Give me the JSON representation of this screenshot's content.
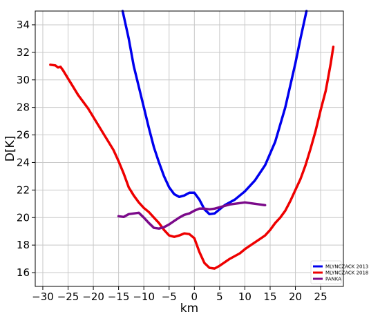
{
  "chart_data": {
    "type": "line",
    "title": "",
    "xlabel": "km",
    "ylabel": "D[K]",
    "xlim": [
      -31.5,
      29.5
    ],
    "ylim": [
      15,
      35
    ],
    "xticks": [
      -30,
      -25,
      -20,
      -15,
      -10,
      -5,
      0,
      5,
      10,
      15,
      20,
      25
    ],
    "xtick_labels": [
      "−30",
      "−25",
      "−20",
      "−15",
      "−10",
      "−5",
      "0",
      "5",
      "10",
      "15",
      "20",
      "25"
    ],
    "yticks": [
      16,
      18,
      20,
      22,
      24,
      26,
      28,
      30,
      32,
      34
    ],
    "ytick_labels": [
      "16",
      "18",
      "20",
      "22",
      "24",
      "26",
      "28",
      "30",
      "32",
      "34"
    ],
    "grid": true,
    "legend_position": "bottom-right",
    "series": [
      {
        "name": "MLYNCZACK 2013",
        "color": "#0000ee",
        "x": [
          -14.2,
          -13,
          -12,
          -11,
          -10,
          -9,
          -8,
          -7,
          -6,
          -5,
          -4,
          -3,
          -2,
          -1,
          0,
          1,
          2,
          3,
          4,
          5,
          6,
          8,
          10,
          12,
          14,
          16,
          18,
          20,
          21,
          22.2
        ],
        "y": [
          35,
          33,
          31,
          29.5,
          28,
          26.5,
          25.1,
          24,
          23,
          22.2,
          21.7,
          21.5,
          21.6,
          21.8,
          21.8,
          21.3,
          20.6,
          20.25,
          20.3,
          20.6,
          20.9,
          21.3,
          21.9,
          22.7,
          23.8,
          25.5,
          28,
          31.2,
          33,
          35
        ]
      },
      {
        "name": "MLYNCZACK 2018",
        "color": "#ee0000",
        "x": [
          -28.5,
          -27.5,
          -27,
          -26.5,
          -26,
          -25,
          -24,
          -23,
          -22,
          -21,
          -20,
          -19,
          -18,
          -17,
          -16,
          -15,
          -14,
          -13,
          -12,
          -11,
          -10,
          -9,
          -8,
          -7,
          -6,
          -5,
          -4,
          -3,
          -2,
          -1,
          0,
          1,
          2,
          3,
          4,
          5,
          6,
          7,
          8,
          9,
          10,
          11,
          12,
          13,
          14,
          15,
          16,
          17,
          18,
          19,
          20,
          21,
          22,
          23,
          24,
          25,
          26,
          26.5,
          27,
          27.5
        ],
        "y": [
          31.1,
          31.05,
          30.9,
          30.95,
          30.7,
          30.1,
          29.5,
          28.9,
          28.4,
          27.9,
          27.3,
          26.7,
          26.1,
          25.5,
          24.9,
          24.1,
          23.2,
          22.2,
          21.6,
          21.1,
          20.7,
          20.4,
          20,
          19.6,
          19.1,
          18.7,
          18.6,
          18.7,
          18.85,
          18.8,
          18.5,
          17.5,
          16.7,
          16.35,
          16.3,
          16.5,
          16.75,
          17,
          17.2,
          17.4,
          17.7,
          17.95,
          18.2,
          18.45,
          18.7,
          19.1,
          19.6,
          20,
          20.5,
          21.2,
          22,
          22.8,
          23.8,
          25,
          26.3,
          27.8,
          29.2,
          30.2,
          31.2,
          32.4
        ]
      },
      {
        "name": "PANKA",
        "color": "#7b0a8a",
        "x": [
          -15,
          -14,
          -13,
          -12,
          -11,
          -10,
          -9,
          -8,
          -7,
          -6,
          -5,
          -4,
          -3,
          -2,
          -1,
          0,
          1,
          2,
          3,
          4,
          5,
          6,
          7,
          8,
          9,
          10,
          11,
          12,
          13,
          14
        ],
        "y": [
          20.1,
          20.05,
          20.25,
          20.3,
          20.35,
          20,
          19.6,
          19.25,
          19.2,
          19.3,
          19.5,
          19.75,
          20,
          20.2,
          20.3,
          20.5,
          20.65,
          20.65,
          20.6,
          20.65,
          20.75,
          20.85,
          20.95,
          21,
          21.05,
          21.1,
          21.05,
          21,
          20.95,
          20.9
        ]
      }
    ]
  }
}
